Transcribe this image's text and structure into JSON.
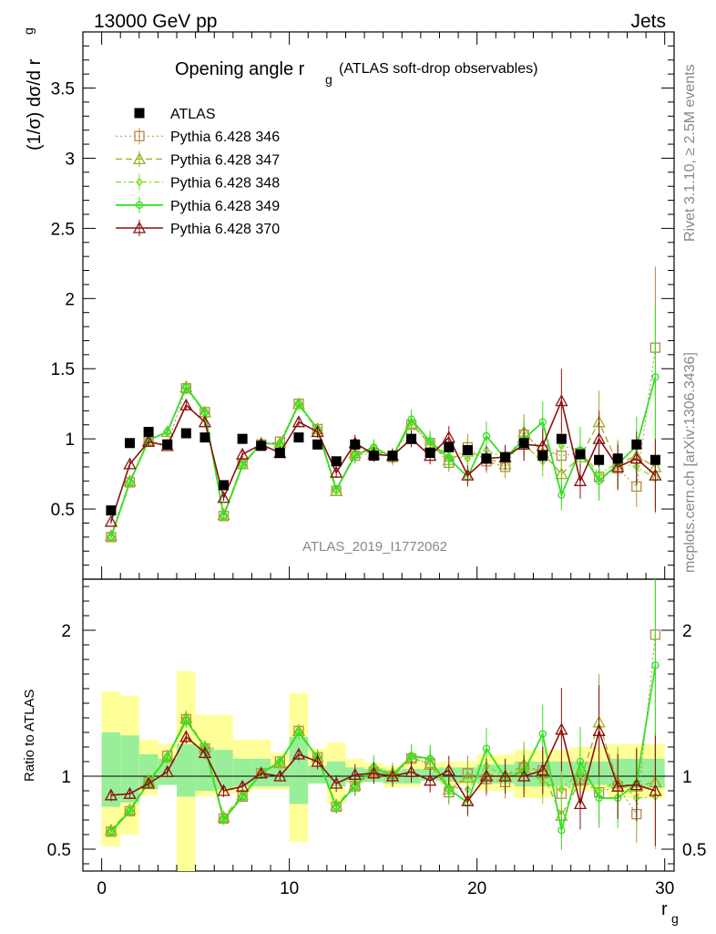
{
  "header": {
    "left": "13000 GeV pp",
    "right": "Jets"
  },
  "side": {
    "rivet": "Rivet 3.1.10, ≥ 2.5M events",
    "mcplots": "mcplots.cern.ch [arXiv:1306.3436]"
  },
  "main": {
    "title_main": "Opening angle r",
    "title_sub": "g",
    "title_paren": "(ATLAS soft-drop observables)",
    "ylabel_main": "(1/σ) dσ/d r",
    "ylabel_sub": "g",
    "watermark": "ATLAS_2019_I1772062"
  },
  "ratio": {
    "ylabel": "Ratio to ATLAS"
  },
  "xaxis": {
    "label_main": "r",
    "label_sub": "g"
  },
  "colors": {
    "data": "#000000",
    "p346": "#b5894a",
    "p347": "#9eae20",
    "p348": "#7ddc2a",
    "p349": "#33e020",
    "p370": "#8b1010",
    "band_outer": "#ffff99",
    "band_inner": "#99ee99"
  },
  "chart_data": {
    "type": "scatter",
    "x": [
      0.5,
      1.5,
      2.5,
      3.5,
      4.5,
      5.5,
      6.5,
      7.5,
      8.5,
      9.5,
      10.5,
      11.5,
      12.5,
      13.5,
      14.5,
      15.5,
      16.5,
      17.5,
      18.5,
      19.5,
      20.5,
      21.5,
      22.5,
      23.5,
      24.5,
      25.5,
      26.5,
      27.5,
      28.5,
      29.5
    ],
    "xlim": [
      -1,
      30.5
    ],
    "ylim_main": [
      0,
      3.9
    ],
    "ylim_ratio": [
      0.35,
      2.35
    ],
    "main_yticks": [
      "0.5",
      "1",
      "1.5",
      "2",
      "2.5",
      "3",
      "3.5"
    ],
    "ratio_yticks": [
      "0.5",
      "1",
      "2"
    ],
    "xticks": [
      "0",
      "10",
      "20",
      "30"
    ],
    "series": [
      {
        "name": "ATLAS",
        "key": "data",
        "marker": "square",
        "values": [
          0.49,
          0.97,
          1.05,
          0.96,
          1.04,
          1.01,
          0.67,
          1.0,
          0.95,
          0.9,
          1.01,
          0.96,
          0.84,
          0.96,
          0.88,
          0.88,
          1.0,
          0.9,
          0.94,
          0.92,
          0.86,
          0.87,
          0.97,
          0.88,
          1.0,
          0.89,
          0.85,
          0.86,
          0.96,
          0.85
        ]
      },
      {
        "name": "Pythia 6.428 346",
        "key": "p346",
        "marker": "open-square",
        "values": [
          0.3,
          0.69,
          0.98,
          0.96,
          1.36,
          1.19,
          0.45,
          0.82,
          0.96,
          0.98,
          1.25,
          1.07,
          0.63,
          0.88,
          0.9,
          0.87,
          1.1,
          0.97,
          0.83,
          0.94,
          0.84,
          0.8,
          1.03,
          0.92,
          0.88,
          0.9,
          0.73,
          0.79,
          0.66,
          1.65
        ],
        "ratio": [
          0.62,
          0.76,
          0.96,
          1.14,
          1.39,
          1.19,
          0.71,
          0.86,
          1.02,
          1.1,
          1.31,
          1.13,
          0.79,
          0.93,
          1.03,
          1.0,
          1.12,
          1.09,
          0.89,
          1.02,
          0.98,
          0.96,
          1.06,
          1.04,
          0.88,
          0.98,
          0.89,
          0.93,
          0.74,
          1.97
        ]
      },
      {
        "name": "Pythia 6.428 347",
        "key": "p347",
        "marker": "open-triangle",
        "values": [
          0.31,
          0.7,
          0.99,
          1.05,
          1.37,
          1.19,
          0.46,
          0.82,
          0.97,
          0.97,
          1.25,
          1.07,
          0.63,
          0.9,
          0.91,
          0.88,
          1.11,
          0.96,
          0.85,
          0.91,
          0.86,
          0.82,
          1.05,
          0.9,
          0.75,
          0.87,
          1.12,
          0.82,
          0.88,
          0.8
        ],
        "ratio": [
          0.63,
          0.77,
          0.97,
          1.13,
          1.4,
          1.2,
          0.72,
          0.87,
          1.02,
          1.09,
          1.31,
          1.13,
          0.8,
          0.94,
          1.04,
          1.02,
          1.13,
          1.08,
          0.91,
          0.99,
          1.01,
          1.0,
          1.08,
          1.02,
          0.73,
          0.97,
          1.37,
          0.95,
          0.93,
          0.96
        ]
      },
      {
        "name": "Pythia 6.428 348",
        "key": "p348",
        "marker": "open-diamond",
        "values": [
          0.3,
          0.7,
          0.99,
          1.05,
          1.37,
          1.18,
          0.45,
          0.82,
          0.97,
          0.96,
          1.24,
          1.06,
          0.63,
          0.89,
          0.94,
          0.86,
          1.12,
          0.99,
          0.88,
          0.86,
          0.92,
          0.86,
          0.96,
          0.84,
          0.95,
          0.92,
          0.75,
          0.83,
          0.8,
          0.72
        ],
        "ratio": [
          0.62,
          0.77,
          0.96,
          1.13,
          1.39,
          1.19,
          0.71,
          0.86,
          1.03,
          1.09,
          1.3,
          1.12,
          0.79,
          0.93,
          1.07,
          1.02,
          1.13,
          1.12,
          0.93,
          0.91,
          1.07,
          1.0,
          1.05,
          0.96,
          0.91,
          1.03,
          0.9,
          0.97,
          0.85,
          0.86
        ]
      },
      {
        "name": "Pythia 6.428 349",
        "key": "p349",
        "marker": "open-circle",
        "values": [
          0.3,
          0.69,
          0.99,
          1.05,
          1.37,
          1.19,
          0.45,
          0.81,
          0.97,
          0.96,
          1.25,
          1.07,
          0.64,
          0.88,
          0.94,
          0.87,
          1.14,
          0.98,
          0.86,
          0.73,
          1.02,
          0.86,
          1.0,
          1.12,
          0.6,
          0.92,
          0.7,
          0.82,
          0.95,
          1.44
        ],
        "ratio": [
          0.62,
          0.76,
          0.96,
          1.13,
          1.38,
          1.2,
          0.7,
          0.86,
          1.02,
          1.1,
          1.3,
          1.13,
          0.79,
          0.93,
          1.06,
          1.0,
          1.14,
          1.12,
          0.91,
          0.82,
          1.19,
          0.99,
          1.03,
          1.29,
          0.63,
          1.1,
          0.85,
          0.85,
          0.95,
          1.76
        ]
      },
      {
        "name": "Pythia 6.428 370",
        "key": "p370",
        "marker": "open-triangle",
        "values": [
          0.41,
          0.82,
          0.98,
          0.95,
          1.24,
          1.12,
          0.58,
          0.89,
          0.96,
          0.9,
          1.12,
          1.05,
          0.76,
          0.97,
          0.89,
          0.88,
          1.0,
          0.88,
          1.01,
          0.74,
          0.86,
          0.87,
          0.96,
          0.95,
          1.27,
          0.7,
          1.0,
          0.8,
          0.86,
          0.74
        ],
        "ratio": [
          0.87,
          0.88,
          0.95,
          1.03,
          1.27,
          1.16,
          0.9,
          0.93,
          1.02,
          1.0,
          1.15,
          1.1,
          0.95,
          1.01,
          1.02,
          1.0,
          1.03,
          0.97,
          1.04,
          0.83,
          1.0,
          1.0,
          1.0,
          1.04,
          1.32,
          0.81,
          1.31,
          0.93,
          0.94,
          0.9
        ]
      }
    ],
    "bands": {
      "outer_lo": [
        0.52,
        0.6,
        0.87,
        0.94,
        0.33,
        0.86,
        0.88,
        0.88,
        0.91,
        0.91,
        0.55,
        0.95,
        0.81,
        0.95,
        0.96,
        0.92,
        0.93,
        0.97,
        0.94,
        0.94,
        0.9,
        0.9,
        0.85,
        0.85,
        0.9,
        0.9,
        0.9,
        0.85,
        0.85,
        0.85
      ],
      "outer_hi": [
        1.58,
        1.55,
        1.25,
        1.22,
        1.72,
        1.42,
        1.42,
        1.25,
        1.25,
        1.16,
        1.57,
        1.19,
        1.23,
        1.12,
        1.09,
        1.07,
        1.1,
        1.09,
        1.1,
        1.1,
        1.15,
        1.15,
        1.18,
        1.18,
        1.18,
        1.2,
        1.2,
        1.22,
        1.22,
        1.22
      ],
      "inner_lo": [
        0.79,
        0.82,
        0.91,
        0.94,
        0.86,
        0.9,
        0.91,
        0.93,
        0.93,
        0.93,
        0.81,
        0.95,
        0.93,
        0.96,
        0.96,
        0.95,
        0.95,
        0.97,
        0.96,
        0.96,
        0.95,
        0.95,
        0.93,
        0.93,
        0.93,
        0.94,
        0.94,
        0.92,
        0.92,
        0.92
      ],
      "inner_hi": [
        1.3,
        1.28,
        1.15,
        1.12,
        1.22,
        1.2,
        1.18,
        1.12,
        1.12,
        1.07,
        1.27,
        1.07,
        1.1,
        1.06,
        1.05,
        1.04,
        1.05,
        1.05,
        1.06,
        1.06,
        1.08,
        1.08,
        1.1,
        1.1,
        1.1,
        1.1,
        1.1,
        1.12,
        1.12,
        1.12
      ]
    }
  }
}
